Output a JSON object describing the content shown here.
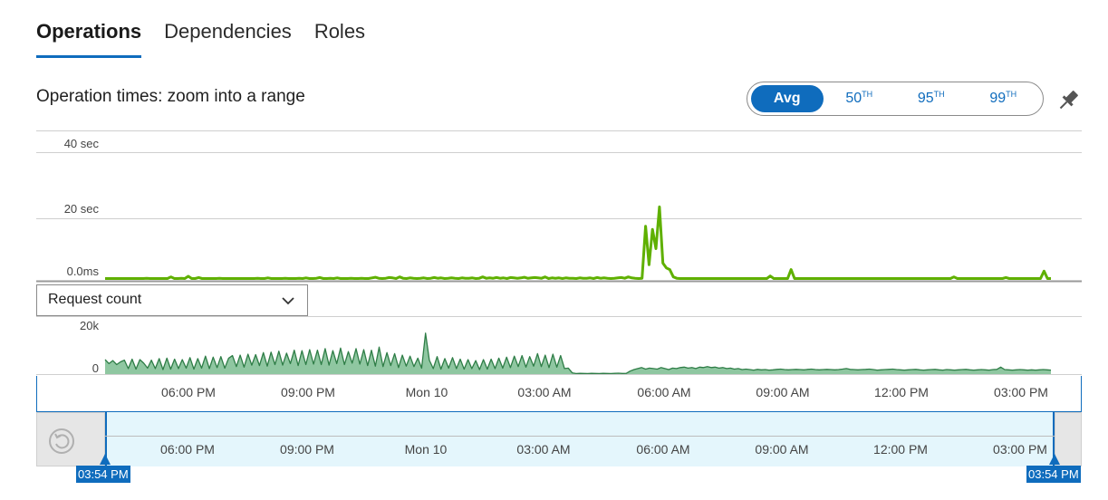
{
  "tabs": [
    {
      "label": "Operations",
      "active": true
    },
    {
      "label": "Dependencies",
      "active": false
    },
    {
      "label": "Roles",
      "active": false
    }
  ],
  "section_title": "Operation times: zoom into a range",
  "percentiles": {
    "avg_label": "Avg",
    "p50_num": "50",
    "p50_suffix": "TH",
    "p95_num": "95",
    "p95_suffix": "TH",
    "p99_num": "99",
    "p99_suffix": "TH",
    "selected": "Avg"
  },
  "pin_icon": "pin-icon",
  "metric_dropdown": {
    "value": "Request count"
  },
  "colors": {
    "accent": "#0f6cbd",
    "duration_line": "#5fb000",
    "count_line": "#2e7d46",
    "count_fill": "#8fc7a1",
    "brush_fill": "#e4f6fc"
  },
  "chart_data": [
    {
      "type": "line",
      "ylabel": "",
      "y_tick_labels": [
        "40 sec",
        "20 sec",
        "0.0ms"
      ],
      "ylim": [
        0,
        40
      ],
      "grid": true,
      "series": [
        {
          "values": [
            0.5,
            0.4,
            0.6,
            0.5,
            0.7,
            0.4,
            0.5,
            0.6,
            0.5,
            0.4,
            0.6,
            0.5,
            0.8,
            0.4,
            0.5,
            0.6,
            0.5,
            0.7,
            0.5,
            1.2,
            0.5,
            0.6,
            0.8,
            0.5,
            1.4,
            0.6,
            0.5,
            1.0,
            0.6,
            0.5,
            0.7,
            0.5,
            0.6,
            0.8,
            0.5,
            0.6,
            0.5,
            0.7,
            0.5,
            0.6,
            0.6,
            0.5,
            0.7,
            0.5,
            0.8,
            0.5,
            0.6,
            0.9,
            0.6,
            0.7,
            0.5,
            0.6,
            0.8,
            0.6,
            0.7,
            0.6,
            0.8,
            0.6,
            0.9,
            0.7,
            0.6,
            0.8,
            1.0,
            0.6,
            0.7,
            0.8,
            0.6,
            0.9,
            0.7,
            0.6,
            0.7,
            0.8,
            0.7,
            0.6,
            0.8,
            0.7,
            0.6,
            0.9,
            1.1,
            0.8,
            0.7,
            0.8,
            1.0,
            0.9,
            0.7,
            1.2,
            0.8,
            0.7,
            0.9,
            0.8,
            0.7,
            0.8,
            0.9,
            0.7,
            0.8,
            1.0,
            0.8,
            0.9,
            0.7,
            0.8,
            0.9,
            0.8,
            0.7,
            0.9,
            0.8,
            0.8,
            0.9,
            0.7,
            0.8,
            1.2,
            0.8,
            0.9,
            0.8,
            1.0,
            0.8,
            0.9,
            0.7,
            1.0,
            0.9,
            0.8,
            0.9,
            1.1,
            0.8,
            0.9,
            1.0,
            0.9,
            0.8,
            1.2,
            0.7,
            0.9,
            0.8,
            0.9,
            0.7,
            0.9,
            0.8,
            0.8,
            0.7,
            0.9,
            0.8,
            0.8,
            0.9,
            0.7,
            1.0,
            0.8,
            0.9,
            0.8,
            0.7,
            0.8,
            0.9,
            1.0,
            0.8,
            1.2,
            0.9,
            0.8,
            0.7,
            0.8,
            17.0,
            5.0,
            16.0,
            10.0,
            23.0,
            5.5,
            4.0,
            3.5,
            1.2,
            0.8,
            0.6,
            0.5,
            0.5,
            0.4,
            0.5,
            0.6,
            0.5,
            0.4,
            0.5,
            0.5,
            0.6,
            0.5,
            0.4,
            0.5,
            0.6,
            0.5,
            0.5,
            0.4,
            0.5,
            0.6,
            0.5,
            0.5,
            0.4,
            0.5,
            0.6,
            0.5,
            1.5,
            0.5,
            0.4,
            0.5,
            0.5,
            0.6,
            3.5,
            0.5,
            0.4,
            0.5,
            0.5,
            0.4,
            0.5,
            0.5,
            0.6,
            0.5,
            0.5,
            0.4,
            0.5,
            0.5,
            0.6,
            0.5,
            0.5,
            0.4,
            0.5,
            0.5,
            0.4,
            0.5,
            0.5,
            0.5,
            0.4,
            0.5,
            0.5,
            0.5,
            0.4,
            0.5,
            0.5,
            0.5,
            0.4,
            0.5,
            0.5,
            0.5,
            0.4,
            0.5,
            0.6,
            0.5,
            0.4,
            0.5,
            0.5,
            0.4,
            0.5,
            0.5,
            0.5,
            1.2,
            0.5,
            0.5,
            0.4,
            0.5,
            0.5,
            0.4,
            0.5,
            0.5,
            0.5,
            0.4,
            0.5,
            0.5,
            0.4,
            0.5,
            1.0,
            0.5,
            0.4,
            0.5,
            0.5,
            0.5,
            0.4,
            0.5,
            0.5,
            0.5,
            0.4,
            3.0,
            0.5,
            0.4
          ]
        }
      ]
    },
    {
      "type": "area",
      "ylabel": "",
      "y_tick_labels": [
        "20k",
        "0"
      ],
      "ylim": [
        0,
        20000
      ],
      "series": [
        {
          "values": [
            5800,
            4200,
            5400,
            3800,
            4900,
            5600,
            2200,
            6000,
            2000,
            5800,
            4400,
            2400,
            5600,
            2200,
            6200,
            1800,
            6400,
            2000,
            6000,
            2200,
            5800,
            2400,
            6600,
            2000,
            6200,
            2400,
            7200,
            2200,
            6800,
            2600,
            7000,
            2400,
            6400,
            7400,
            3000,
            7600,
            2800,
            8000,
            3600,
            7800,
            3400,
            8600,
            3200,
            8800,
            3800,
            9200,
            3600,
            8400,
            4200,
            9600,
            3400,
            9400,
            3800,
            9800,
            4000,
            9600,
            3800,
            10200,
            3600,
            9400,
            4200,
            10400,
            3800,
            9000,
            4400,
            10200,
            4000,
            9800,
            3400,
            9600,
            3200,
            10800,
            3000,
            8600,
            3400,
            8200,
            2600,
            7600,
            3200,
            7200,
            3000,
            6400,
            2400,
            16400,
            5600,
            2200,
            7000,
            2000,
            6200,
            2400,
            6600,
            2200,
            6000,
            2000,
            5800,
            2200,
            5400,
            1800,
            5800,
            2000,
            6000,
            2200,
            6400,
            2400,
            6800,
            2600,
            7200,
            3000,
            7400,
            2800,
            7000,
            3200,
            8200,
            3000,
            7600,
            2600,
            8000,
            2800,
            7400,
            2200,
            2400,
            500,
            200,
            300,
            250,
            200,
            300,
            250,
            200,
            300,
            250,
            200,
            300,
            350,
            250,
            300,
            1200,
            1800,
            2200,
            2600,
            2000,
            2400,
            2200,
            2000,
            2600,
            2200,
            1800,
            2400,
            2200,
            2600,
            2800,
            2400,
            2600,
            2200,
            2800,
            2600,
            3000,
            2600,
            2800,
            2400,
            2600,
            2200,
            2400,
            2000,
            2200,
            1800,
            2000,
            1800,
            1600,
            1900,
            1700,
            1800,
            1600,
            1700,
            1900,
            2000,
            1800,
            1700,
            1800,
            1900,
            1800,
            1700,
            1900,
            2000,
            1800,
            1700,
            1800,
            1900,
            1800,
            1700,
            1800,
            2000,
            2200,
            1900,
            1800,
            1700,
            1800,
            1900,
            2000,
            1800,
            1600,
            1700,
            1800,
            1900,
            2000,
            1800,
            1700,
            1600,
            1700,
            1800,
            1900,
            1700,
            1600,
            1700,
            1800,
            1900,
            1700,
            1600,
            1800,
            1700,
            1600,
            1700,
            1800,
            1900,
            1700,
            1600,
            1700,
            1800,
            1700,
            1600,
            1800,
            1900,
            2800,
            1800,
            1700,
            1600,
            1700,
            1800,
            1700,
            1600,
            1700,
            1600,
            1700,
            1800,
            1700,
            1600
          ]
        }
      ]
    }
  ],
  "x_ticks": [
    "06:00 PM",
    "09:00 PM",
    "Mon 10",
    "03:00 AM",
    "06:00 AM",
    "09:00 AM",
    "12:00 PM",
    "03:00 PM"
  ],
  "brush": {
    "ticks": [
      "06:00 PM",
      "09:00 PM",
      "Mon 10",
      "03:00 AM",
      "06:00 AM",
      "09:00 AM",
      "12:00 PM",
      "03:00 PM"
    ],
    "start_label": "03:54 PM",
    "end_label": "03:54 PM"
  }
}
